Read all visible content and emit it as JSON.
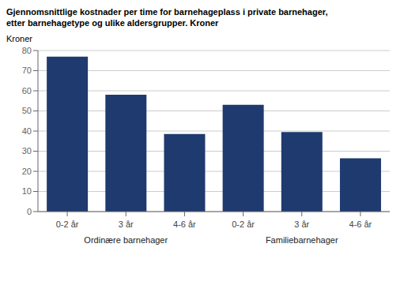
{
  "chart_data": {
    "type": "bar",
    "title": "Gjennomsnittlige kostnader per time for barnehageplass i private barnehager,",
    "subtitle": "etter barnehagetype og ulike aldersgrupper. Kroner",
    "ylabel": "Kroner",
    "groups": [
      {
        "label": "Ordinære barnehager",
        "categories": [
          "0-2 år",
          "3 år",
          "4-6 år"
        ],
        "values": [
          77,
          58,
          38.5
        ]
      },
      {
        "label": "Familiebarnehager",
        "categories": [
          "0-2 år",
          "3 år",
          "4-6 år"
        ],
        "values": [
          53,
          39.5,
          26.5
        ]
      }
    ],
    "color": "#1F3A6E",
    "ylim": [
      0,
      80
    ],
    "yticks": [
      0,
      10,
      20,
      30,
      40,
      50,
      60,
      70,
      80
    ],
    "grid": true
  }
}
